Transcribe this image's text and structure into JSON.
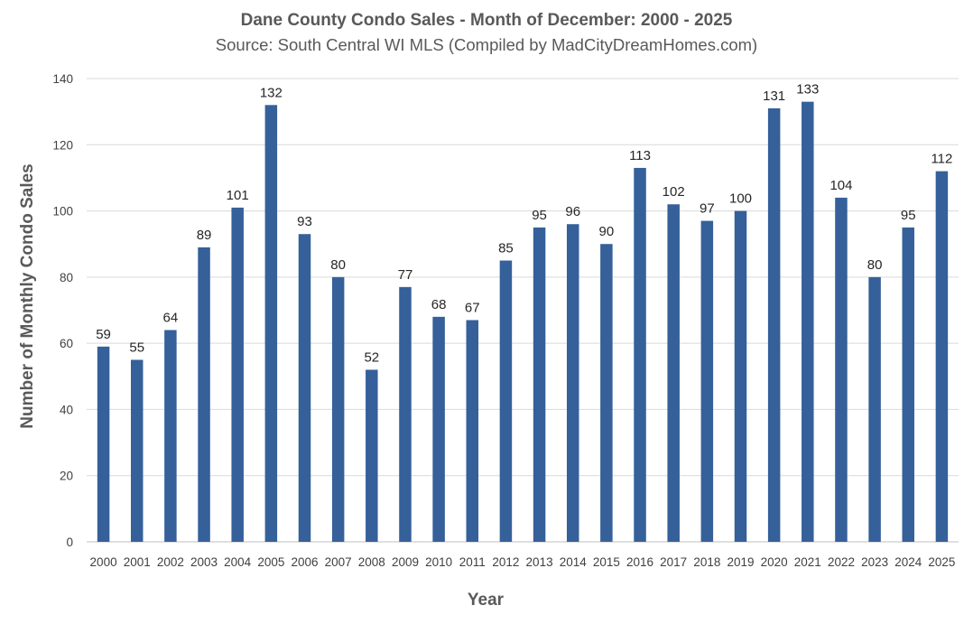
{
  "chart_data": {
    "type": "bar",
    "title": "Dane County Condo Sales - Month of December: 2000 - 2025",
    "subtitle": "Source: South Central WI MLS (Compiled by MadCityDreamHomes.com)",
    "xlabel": "Year",
    "ylabel": "Number of Monthly Condo Sales",
    "categories": [
      "2000",
      "2001",
      "2002",
      "2003",
      "2004",
      "2005",
      "2006",
      "2007",
      "2008",
      "2009",
      "2010",
      "2011",
      "2012",
      "2013",
      "2014",
      "2015",
      "2016",
      "2017",
      "2018",
      "2019",
      "2020",
      "2021",
      "2022",
      "2023",
      "2024",
      "2025"
    ],
    "values": [
      59,
      55,
      64,
      89,
      101,
      132,
      93,
      80,
      52,
      77,
      68,
      67,
      85,
      95,
      96,
      90,
      113,
      102,
      97,
      100,
      131,
      133,
      104,
      80,
      95,
      112
    ],
    "ylim": [
      0,
      140
    ],
    "yticks": [
      0,
      20,
      40,
      60,
      80,
      100,
      120,
      140
    ],
    "grid": true,
    "legend": "none",
    "bar_color": "#35609a",
    "data_labels": true
  }
}
